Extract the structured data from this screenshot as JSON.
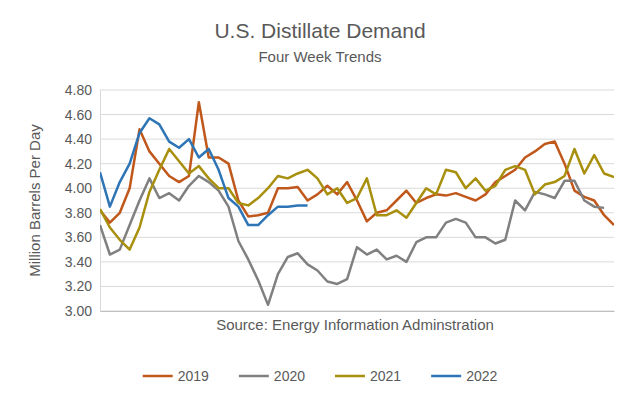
{
  "chart_data": {
    "type": "line",
    "title": "U.S. Distillate Demand",
    "subtitle": "Four Week Trends",
    "y_label": "Million Barrels Per Day",
    "annotation": "Source: Energy Information Adminstration",
    "x": [
      1,
      2,
      3,
      4,
      5,
      6,
      7,
      8,
      9,
      10,
      11,
      12,
      13,
      14,
      15,
      16,
      17,
      18,
      19,
      20,
      21,
      22,
      23,
      24,
      25,
      26,
      27,
      28,
      29,
      30,
      31,
      32,
      33,
      34,
      35,
      36,
      37,
      38,
      39,
      40,
      41,
      42,
      43,
      44,
      45,
      46,
      47,
      48,
      49,
      50,
      51,
      52,
      53
    ],
    "xlim": [
      1,
      53
    ],
    "ylim": [
      3,
      4.8
    ],
    "yticks": [
      {
        "value": 3,
        "label": "3.00"
      },
      {
        "value": 3.2,
        "label": "3.20"
      },
      {
        "value": 3.4,
        "label": "3.40"
      },
      {
        "value": 3.6,
        "label": "3.60"
      },
      {
        "value": 3.8,
        "label": "3.80"
      },
      {
        "value": 4,
        "label": "4.00"
      },
      {
        "value": 4.2,
        "label": "4.20"
      },
      {
        "value": 4.4,
        "label": "4.40"
      },
      {
        "value": 4.6,
        "label": "4.60"
      },
      {
        "value": 4.8,
        "label": "4.80"
      }
    ],
    "grid": true,
    "legend": "bottom",
    "tick_labels": "y",
    "series": [
      {
        "name": "2019",
        "color": "#c0571b",
        "values": [
          3.82,
          3.72,
          3.8,
          4.0,
          4.48,
          4.3,
          4.2,
          4.1,
          4.05,
          4.1,
          4.7,
          4.25,
          4.25,
          4.2,
          3.9,
          3.77,
          3.78,
          3.8,
          4.0,
          4.0,
          4.01,
          3.9,
          3.95,
          4.02,
          3.95,
          4.05,
          3.9,
          3.73,
          3.8,
          3.82,
          3.9,
          3.98,
          3.88,
          3.92,
          3.95,
          3.94,
          3.96,
          3.93,
          3.9,
          3.95,
          4.05,
          4.1,
          4.15,
          4.25,
          4.3,
          4.36,
          4.38,
          4.2,
          3.98,
          3.93,
          3.9,
          3.78,
          3.7
        ]
      },
      {
        "name": "2020",
        "color": "#808080",
        "values": [
          3.7,
          3.46,
          3.5,
          3.7,
          3.9,
          4.08,
          3.92,
          3.96,
          3.9,
          4.02,
          4.1,
          4.05,
          3.98,
          3.85,
          3.57,
          3.42,
          3.25,
          3.05,
          3.3,
          3.44,
          3.47,
          3.38,
          3.33,
          3.24,
          3.22,
          3.26,
          3.52,
          3.46,
          3.5,
          3.42,
          3.45,
          3.4,
          3.56,
          3.6,
          3.6,
          3.72,
          3.75,
          3.72,
          3.6,
          3.6,
          3.55,
          3.58,
          3.9,
          3.82,
          3.97,
          3.95,
          3.92,
          4.06,
          4.06,
          3.9,
          3.85,
          3.84,
          null
        ]
      },
      {
        "name": "2021",
        "color": "#a8900e",
        "values": [
          3.83,
          3.68,
          3.58,
          3.5,
          3.68,
          3.97,
          4.15,
          4.32,
          4.22,
          4.12,
          4.18,
          4.08,
          4.0,
          4.0,
          3.88,
          3.86,
          3.92,
          4.0,
          4.1,
          4.08,
          4.12,
          4.15,
          4.08,
          3.95,
          4.0,
          3.88,
          3.92,
          4.08,
          3.78,
          3.78,
          3.82,
          3.76,
          3.88,
          4.0,
          3.95,
          4.15,
          4.13,
          4.0,
          4.08,
          3.98,
          4.02,
          4.15,
          4.18,
          4.15,
          3.95,
          4.03,
          4.05,
          4.1,
          4.32,
          4.12,
          4.27,
          4.12,
          4.09
        ]
      },
      {
        "name": "2022",
        "color": "#2e75b6",
        "values": [
          4.13,
          3.85,
          4.05,
          4.2,
          4.45,
          4.57,
          4.52,
          4.38,
          4.33,
          4.4,
          4.25,
          4.32,
          4.15,
          3.92,
          3.85,
          3.7,
          3.7,
          3.78,
          3.85,
          3.85,
          3.86,
          3.86,
          null,
          null,
          null,
          null,
          null,
          null,
          null,
          null,
          null,
          null,
          null,
          null,
          null,
          null,
          null,
          null,
          null,
          null,
          null,
          null,
          null,
          null,
          null,
          null,
          null,
          null,
          null,
          null,
          null,
          null,
          null
        ]
      }
    ]
  }
}
